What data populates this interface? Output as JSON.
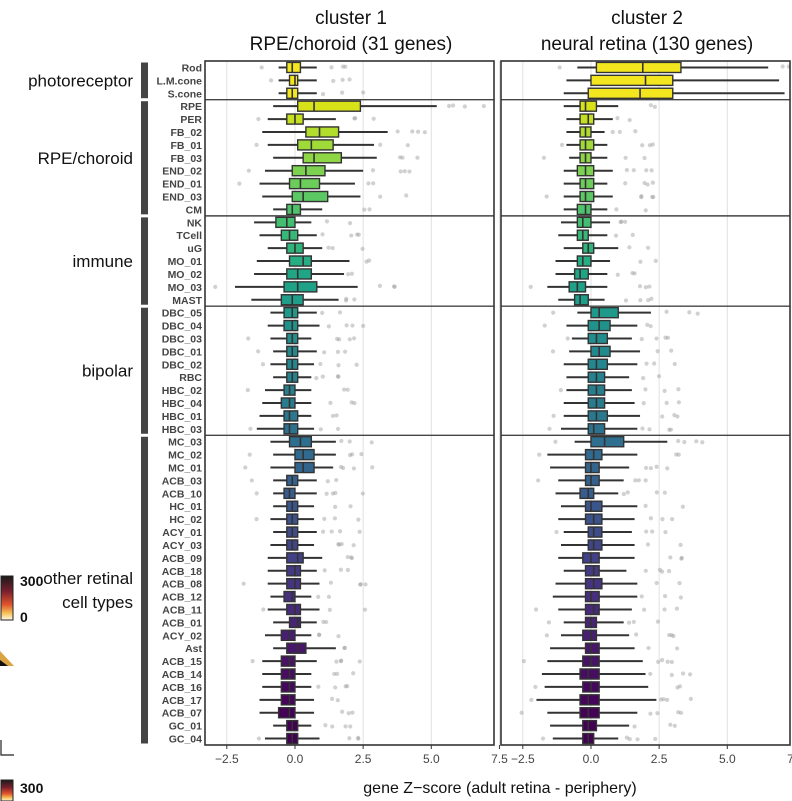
{
  "chart_data": {
    "type": "boxplot",
    "xlabel": "gene Z−score (adult retina - periphery)",
    "xlim": [
      -3.3,
      7.3
    ],
    "xticks": [
      -2.5,
      0.0,
      2.5,
      5.0,
      7.5
    ],
    "xtick_labels": [
      "−2.5",
      "0.0",
      "2.5",
      "5.0",
      "7.5"
    ],
    "panels": [
      {
        "title_line1": "cluster 1",
        "title_line2": "RPE/choroid (31 genes)"
      },
      {
        "title_line1": "cluster 2",
        "title_line2": "neural retina (130 genes)"
      }
    ],
    "groups": [
      {
        "label": "photoreceptor",
        "rows": [
          "Rod",
          "L.M.cone",
          "S.cone"
        ]
      },
      {
        "label": "RPE/choroid",
        "rows": [
          "RPE",
          "PER",
          "FB_02",
          "FB_01",
          "FB_03",
          "END_02",
          "END_01",
          "END_03",
          "CM"
        ]
      },
      {
        "label": "immune",
        "rows": [
          "NK",
          "TCell",
          "uG",
          "MO_01",
          "MO_02",
          "MO_03",
          "MAST"
        ]
      },
      {
        "label": "bipolar",
        "rows": [
          "DBC_05",
          "DBC_04",
          "DBC_03",
          "DBC_01",
          "DBC_02",
          "RBC",
          "HBC_02",
          "HBC_04",
          "HBC_01",
          "HBC_03"
        ]
      },
      {
        "label": "other retinal\ncell types",
        "rows": [
          "MC_03",
          "MC_02",
          "MC_01",
          "ACB_03",
          "ACB_10",
          "HC_01",
          "HC_02",
          "ACY_01",
          "ACY_03",
          "ACB_09",
          "ACB_18",
          "ACB_08",
          "ACB_12",
          "ACB_11",
          "ACB_01",
          "ACY_02",
          "Ast",
          "ACB_15",
          "ACB_14",
          "ACB_16",
          "ACB_17",
          "ACB_07",
          "GC_01",
          "GC_04"
        ]
      }
    ],
    "rows": [
      "Rod",
      "L.M.cone",
      "S.cone",
      "RPE",
      "PER",
      "FB_02",
      "FB_01",
      "FB_03",
      "END_02",
      "END_01",
      "END_03",
      "CM",
      "NK",
      "TCell",
      "uG",
      "MO_01",
      "MO_02",
      "MO_03",
      "MAST",
      "DBC_05",
      "DBC_04",
      "DBC_03",
      "DBC_01",
      "DBC_02",
      "RBC",
      "HBC_02",
      "HBC_04",
      "HBC_01",
      "HBC_03",
      "MC_03",
      "MC_02",
      "MC_01",
      "ACB_03",
      "ACB_10",
      "HC_01",
      "HC_02",
      "ACY_01",
      "ACY_03",
      "ACB_09",
      "ACB_18",
      "ACB_08",
      "ACB_12",
      "ACB_11",
      "ACB_01",
      "ACY_02",
      "Ast",
      "ACB_15",
      "ACB_14",
      "ACB_16",
      "ACB_17",
      "ACB_07",
      "GC_01",
      "GC_04"
    ],
    "colors": [
      "#f4e61e",
      "#f4e61e",
      "#f4e61e",
      "#d8e219",
      "#c6e021",
      "#b2dd2d",
      "#a0da39",
      "#8ed645",
      "#7cd250",
      "#6ccd5a",
      "#5cc863",
      "#4fc36b",
      "#42be71",
      "#37b878",
      "#2fb47c",
      "#26ad81",
      "#21a685",
      "#1fa287",
      "#1f9e89",
      "#1f998a",
      "#20928c",
      "#218e8d",
      "#23898e",
      "#24868e",
      "#26828e",
      "#277f8e",
      "#297b8e",
      "#2a788e",
      "#2c728e",
      "#2e6e8e",
      "#306a8e",
      "#32658e",
      "#34618d",
      "#365d8d",
      "#39568c",
      "#3b528b",
      "#3e4c8a",
      "#404588",
      "#424086",
      "#443a83",
      "#453581",
      "#462f7e",
      "#472a7a",
      "#482475",
      "#481f70",
      "#481769",
      "#471365",
      "#470d60",
      "#46085c",
      "#450559",
      "#440256",
      "#440154",
      "#440154"
    ],
    "series": [
      {
        "name": "cluster 1",
        "boxes": [
          [
            -0.6,
            -0.3,
            -0.1,
            0.2,
            0.8
          ],
          [
            -0.6,
            -0.2,
            0.0,
            0.1,
            0.8
          ],
          [
            -0.6,
            -0.3,
            -0.1,
            0.1,
            0.8
          ],
          [
            -0.8,
            0.1,
            0.7,
            2.4,
            5.2
          ],
          [
            -1.0,
            -0.3,
            0.0,
            0.3,
            1.5
          ],
          [
            -1.2,
            0.4,
            0.9,
            1.6,
            3.4
          ],
          [
            -1.0,
            0.1,
            0.6,
            1.4,
            2.9
          ],
          [
            -0.8,
            0.3,
            0.7,
            1.7,
            3.0
          ],
          [
            -1.1,
            -0.1,
            0.4,
            1.1,
            2.5
          ],
          [
            -1.3,
            -0.2,
            0.2,
            0.9,
            2.2
          ],
          [
            -1.2,
            -0.1,
            0.3,
            1.2,
            2.4
          ],
          [
            -0.8,
            -0.3,
            -0.1,
            0.2,
            1.0
          ],
          [
            -1.5,
            -0.7,
            -0.3,
            0.0,
            0.6
          ],
          [
            -1.3,
            -0.5,
            -0.2,
            0.1,
            0.8
          ],
          [
            -1.0,
            -0.3,
            0.0,
            0.3,
            1.0
          ],
          [
            -1.4,
            -0.2,
            0.3,
            0.6,
            2.0
          ],
          [
            -1.5,
            -0.3,
            0.1,
            0.6,
            1.8
          ],
          [
            -2.2,
            -0.4,
            0.1,
            0.8,
            2.3
          ],
          [
            -1.6,
            -0.5,
            -0.1,
            0.3,
            1.6
          ],
          [
            -0.9,
            -0.4,
            -0.1,
            0.1,
            0.8
          ],
          [
            -1.0,
            -0.4,
            -0.1,
            0.1,
            0.9
          ],
          [
            -0.9,
            -0.3,
            -0.1,
            0.1,
            0.6
          ],
          [
            -0.8,
            -0.3,
            -0.1,
            0.1,
            0.8
          ],
          [
            -0.9,
            -0.3,
            -0.1,
            0.1,
            0.7
          ],
          [
            -0.8,
            -0.3,
            -0.1,
            0.1,
            0.6
          ],
          [
            -1.1,
            -0.4,
            -0.2,
            0.0,
            0.6
          ],
          [
            -1.2,
            -0.5,
            -0.2,
            0.0,
            0.6
          ],
          [
            -1.3,
            -0.4,
            -0.2,
            0.1,
            0.6
          ],
          [
            -1.4,
            -0.4,
            -0.2,
            0.1,
            0.7
          ],
          [
            -0.9,
            -0.2,
            0.2,
            0.6,
            1.5
          ],
          [
            -0.8,
            0.0,
            0.3,
            0.7,
            1.5
          ],
          [
            -0.9,
            0.0,
            0.3,
            0.7,
            1.4
          ],
          [
            -0.8,
            -0.3,
            -0.1,
            0.1,
            0.8
          ],
          [
            -0.8,
            -0.4,
            -0.2,
            0.0,
            0.8
          ],
          [
            -0.8,
            -0.3,
            -0.1,
            0.1,
            0.7
          ],
          [
            -0.9,
            -0.3,
            -0.1,
            0.1,
            0.7
          ],
          [
            -0.8,
            -0.3,
            -0.1,
            0.1,
            0.8
          ],
          [
            -0.9,
            -0.3,
            -0.1,
            0.1,
            0.7
          ],
          [
            -1.0,
            -0.3,
            0.1,
            0.3,
            1.0
          ],
          [
            -1.0,
            -0.3,
            0.0,
            0.2,
            0.8
          ],
          [
            -1.0,
            -0.3,
            0.0,
            0.2,
            0.9
          ],
          [
            -0.9,
            -0.4,
            -0.1,
            0.0,
            0.6
          ],
          [
            -1.0,
            -0.3,
            0.0,
            0.2,
            0.9
          ],
          [
            -0.8,
            -0.2,
            0.1,
            0.2,
            0.8
          ],
          [
            -1.1,
            -0.5,
            -0.2,
            0.0,
            0.6
          ],
          [
            -0.8,
            -0.3,
            0.1,
            0.4,
            1.5
          ],
          [
            -1.2,
            -0.5,
            -0.2,
            0.0,
            0.8
          ],
          [
            -1.2,
            -0.5,
            -0.2,
            0.0,
            0.6
          ],
          [
            -1.2,
            -0.5,
            -0.2,
            0.0,
            0.6
          ],
          [
            -1.3,
            -0.5,
            -0.2,
            0.0,
            0.7
          ],
          [
            -1.3,
            -0.6,
            -0.2,
            0.0,
            0.7
          ],
          [
            -0.8,
            -0.3,
            -0.1,
            0.1,
            0.6
          ],
          [
            -1.1,
            -0.3,
            -0.1,
            0.1,
            0.9
          ]
        ]
      },
      {
        "name": "cluster 2",
        "boxes": [
          [
            -0.5,
            0.2,
            1.9,
            3.3,
            6.5
          ],
          [
            -0.9,
            0.0,
            2.0,
            3.0,
            6.9
          ],
          [
            -1.0,
            -0.1,
            1.8,
            3.0,
            7.1
          ],
          [
            -1.0,
            -0.4,
            -0.2,
            0.2,
            1.0
          ],
          [
            -0.9,
            -0.4,
            -0.1,
            0.1,
            0.8
          ],
          [
            -0.9,
            -0.4,
            -0.2,
            0.0,
            0.5
          ],
          [
            -0.9,
            -0.4,
            -0.2,
            0.1,
            0.6
          ],
          [
            -0.8,
            -0.4,
            -0.2,
            0.0,
            0.6
          ],
          [
            -1.0,
            -0.5,
            -0.2,
            0.1,
            0.8
          ],
          [
            -1.0,
            -0.4,
            -0.2,
            0.1,
            0.6
          ],
          [
            -1.0,
            -0.4,
            -0.2,
            0.1,
            0.8
          ],
          [
            -1.0,
            -0.5,
            -0.2,
            0.0,
            0.6
          ],
          [
            -1.1,
            -0.5,
            -0.3,
            0.0,
            0.7
          ],
          [
            -1.2,
            -0.5,
            -0.3,
            -0.1,
            0.6
          ],
          [
            -1.0,
            -0.3,
            -0.1,
            0.1,
            1.0
          ],
          [
            -1.3,
            -0.5,
            -0.3,
            0.0,
            0.7
          ],
          [
            -1.3,
            -0.6,
            -0.4,
            -0.1,
            0.6
          ],
          [
            -1.6,
            -0.8,
            -0.5,
            -0.2,
            0.6
          ],
          [
            -1.2,
            -0.6,
            -0.4,
            -0.1,
            0.5
          ],
          [
            -0.5,
            0.0,
            0.3,
            1.0,
            2.2
          ],
          [
            -0.9,
            -0.1,
            0.3,
            0.7,
            1.7
          ],
          [
            -0.7,
            -0.1,
            0.2,
            0.6,
            1.5
          ],
          [
            -0.8,
            0.0,
            0.3,
            0.7,
            1.8
          ],
          [
            -1.0,
            -0.1,
            0.2,
            0.6,
            1.7
          ],
          [
            -0.9,
            -0.1,
            0.2,
            0.5,
            1.4
          ],
          [
            -0.9,
            -0.1,
            0.2,
            0.5,
            1.5
          ],
          [
            -1.0,
            -0.1,
            0.2,
            0.5,
            1.6
          ],
          [
            -1.0,
            -0.1,
            0.2,
            0.6,
            1.8
          ],
          [
            -1.1,
            -0.1,
            0.1,
            0.5,
            1.7
          ],
          [
            -0.6,
            0.0,
            0.5,
            1.2,
            2.8
          ],
          [
            -1.6,
            -0.2,
            0.1,
            0.4,
            1.7
          ],
          [
            -1.5,
            -0.2,
            0.0,
            0.3,
            1.4
          ],
          [
            -1.2,
            -0.2,
            0.0,
            0.3,
            1.2
          ],
          [
            -1.3,
            -0.4,
            -0.1,
            0.1,
            1.0
          ],
          [
            -1.1,
            -0.2,
            0.0,
            0.4,
            1.7
          ],
          [
            -1.2,
            -0.2,
            0.1,
            0.4,
            1.6
          ],
          [
            -1.0,
            -0.1,
            0.1,
            0.4,
            1.5
          ],
          [
            -1.1,
            -0.1,
            0.1,
            0.4,
            1.6
          ],
          [
            -1.2,
            -0.3,
            0.0,
            0.3,
            1.6
          ],
          [
            -1.0,
            -0.2,
            0.1,
            0.3,
            1.3
          ],
          [
            -1.3,
            -0.2,
            0.1,
            0.4,
            1.7
          ],
          [
            -1.4,
            -0.2,
            0.0,
            0.3,
            1.7
          ],
          [
            -1.2,
            -0.2,
            0.1,
            0.3,
            1.5
          ],
          [
            -1.0,
            -0.2,
            0.0,
            0.2,
            1.2
          ],
          [
            -1.1,
            -0.3,
            0.0,
            0.2,
            1.4
          ],
          [
            -1.5,
            -0.2,
            0.0,
            0.3,
            1.6
          ],
          [
            -1.6,
            -0.3,
            0.0,
            0.3,
            1.9
          ],
          [
            -1.8,
            -0.4,
            -0.1,
            0.3,
            2.0
          ],
          [
            -1.7,
            -0.3,
            0.0,
            0.3,
            2.1
          ],
          [
            -2.0,
            -0.4,
            -0.1,
            0.3,
            2.4
          ],
          [
            -1.6,
            -0.4,
            -0.1,
            0.3,
            1.7
          ],
          [
            -1.5,
            -0.3,
            -0.1,
            0.2,
            1.4
          ],
          [
            -1.4,
            -0.3,
            -0.1,
            0.1,
            1.0
          ]
        ]
      }
    ],
    "legend": {
      "max_label": "300",
      "min_label": "0",
      "max_label_2": "300"
    }
  }
}
